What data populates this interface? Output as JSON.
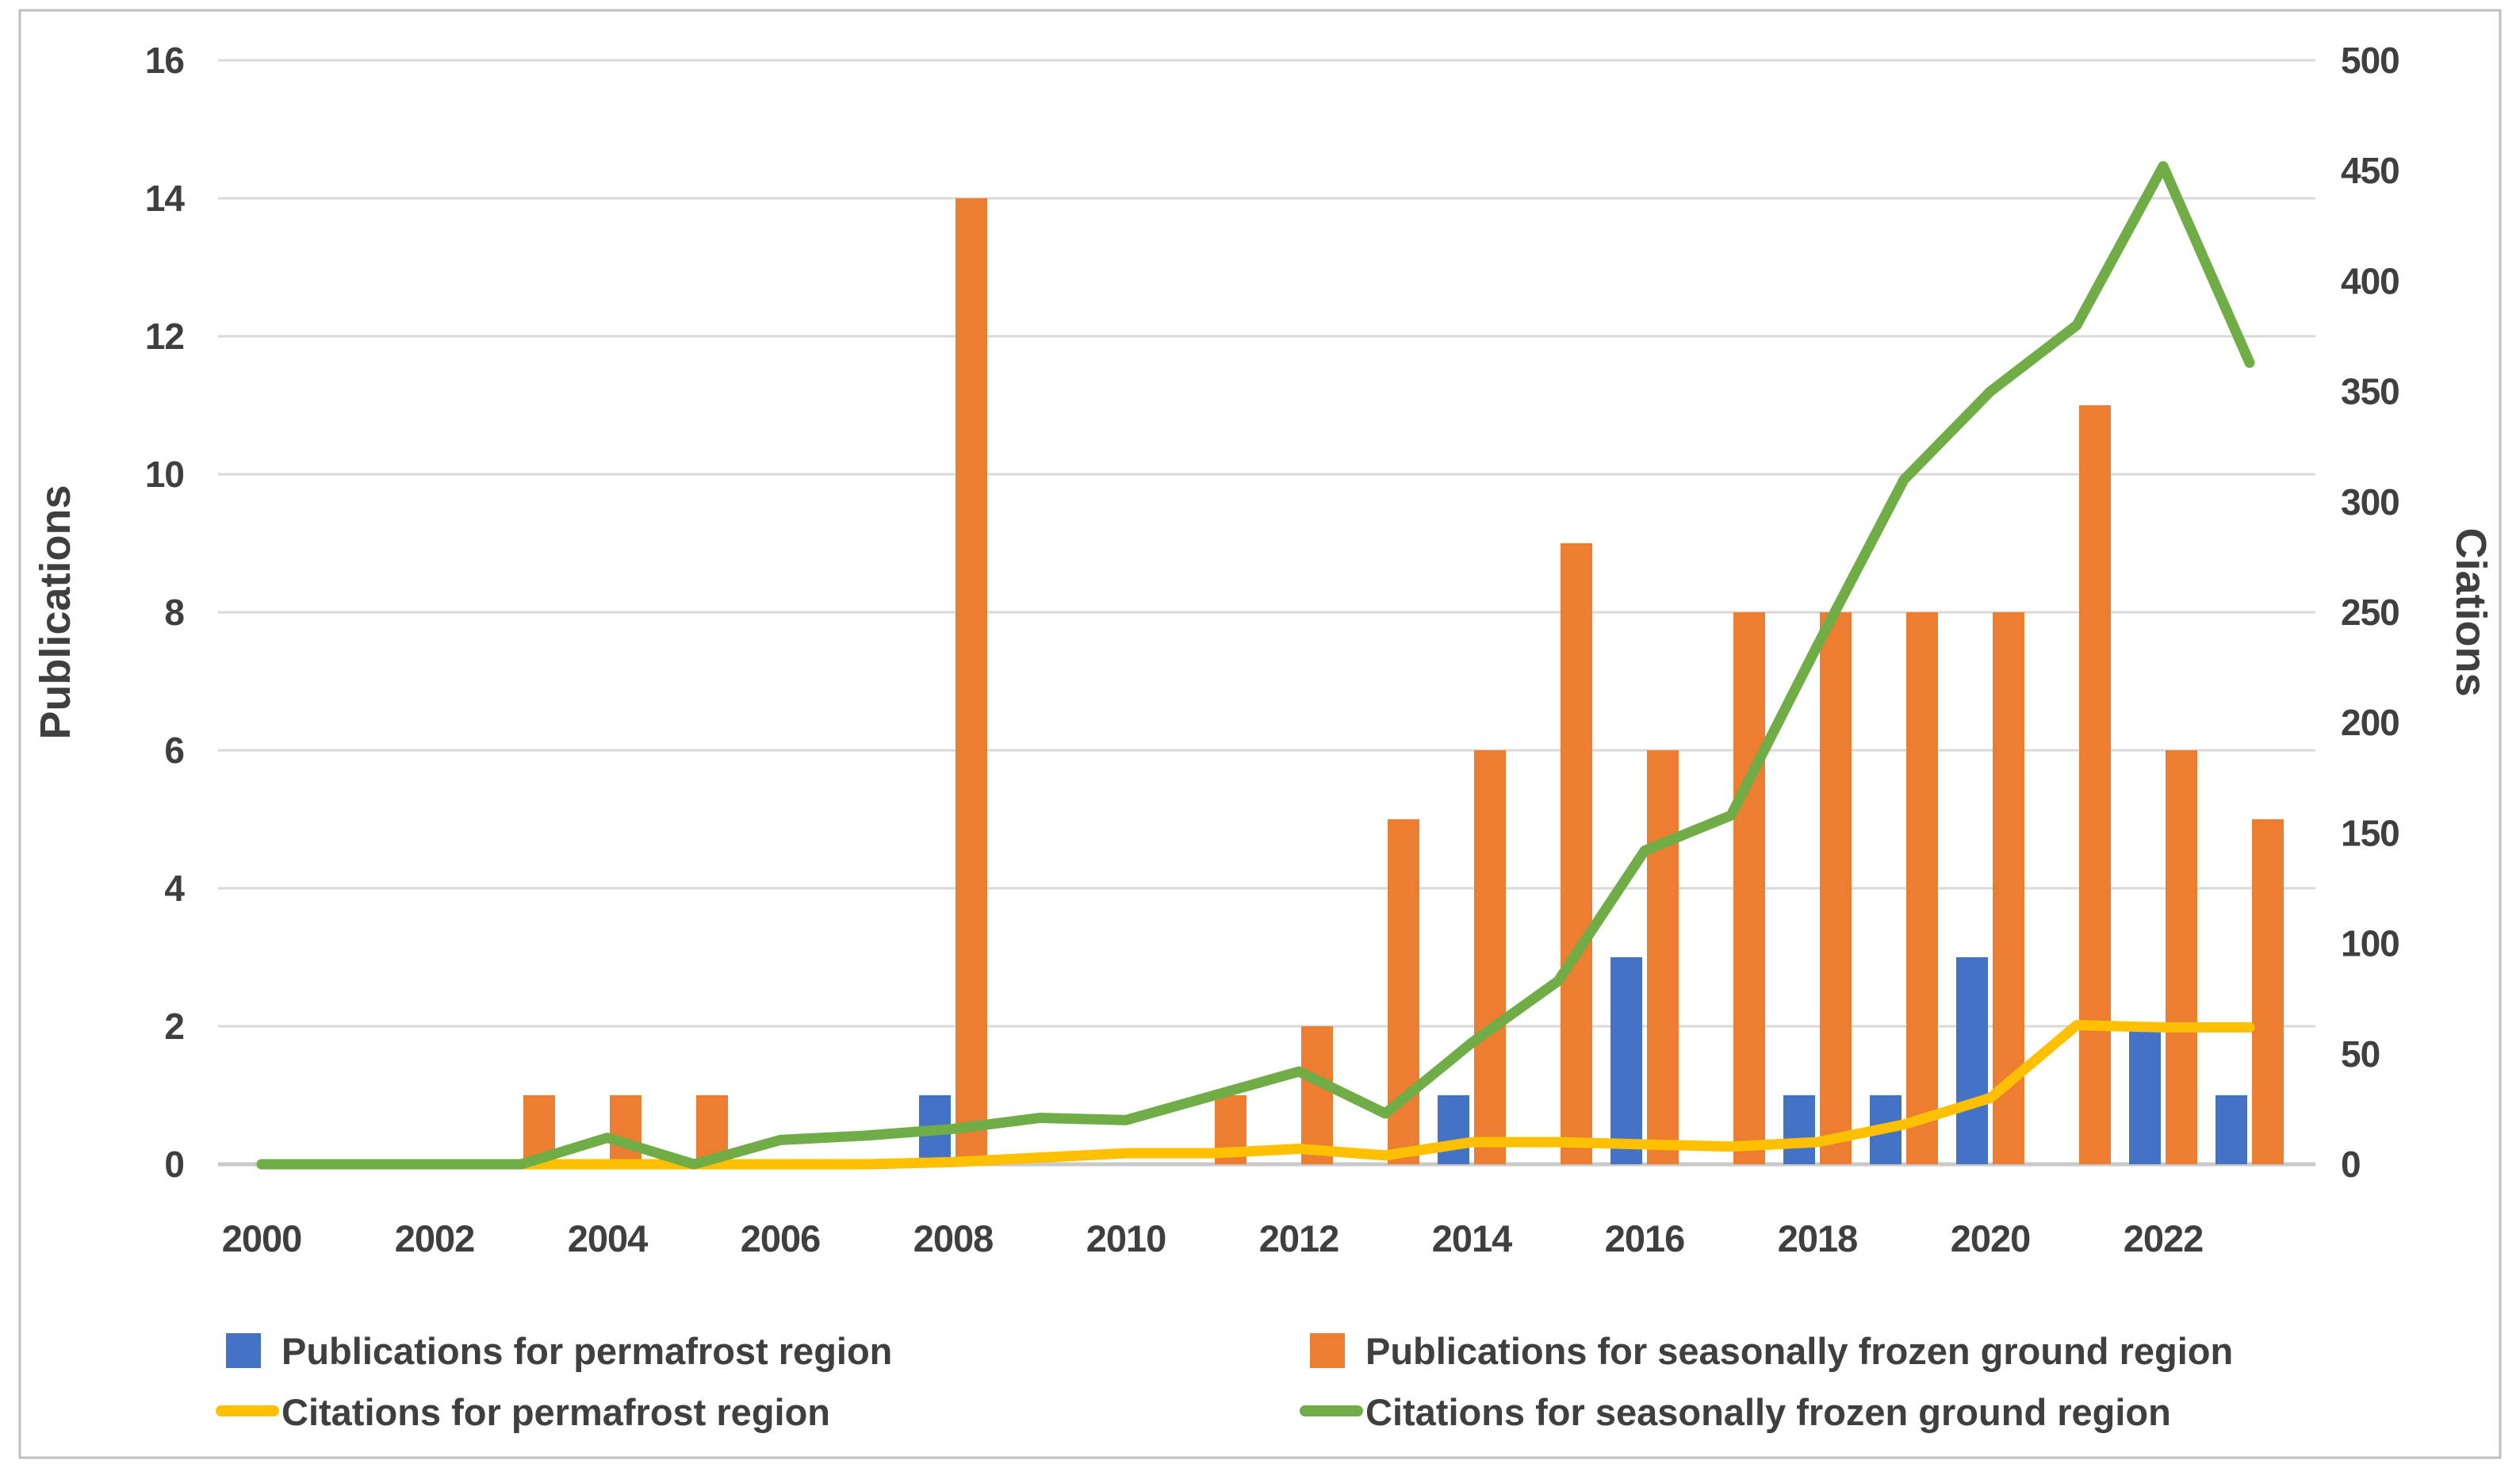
{
  "chart_data": {
    "type": "combo-bar-line",
    "title": "",
    "x": [
      2000,
      2001,
      2002,
      2003,
      2004,
      2005,
      2006,
      2007,
      2008,
      2009,
      2010,
      2011,
      2012,
      2013,
      2014,
      2015,
      2016,
      2017,
      2018,
      2019,
      2020,
      2021,
      2022,
      2023
    ],
    "series": [
      {
        "name": "Publications for permafrost region",
        "type": "bar",
        "axis": "left",
        "color": "#4472C4",
        "values": [
          0,
          0,
          0,
          0,
          0,
          0,
          0,
          0,
          1,
          0,
          0,
          0,
          0,
          0,
          1,
          0,
          3,
          0,
          1,
          1,
          3,
          0,
          2,
          1
        ]
      },
      {
        "name": "Publications for seasonally frozen ground region",
        "type": "bar",
        "axis": "left",
        "color": "#ED7D31",
        "values": [
          0,
          0,
          0,
          1,
          1,
          1,
          0,
          0,
          14,
          0,
          0,
          1,
          2,
          5,
          6,
          9,
          6,
          8,
          8,
          8,
          8,
          11,
          6,
          5
        ]
      },
      {
        "name": "Citations for permafrost region",
        "type": "line",
        "axis": "right",
        "color": "#FFC000",
        "values": [
          0,
          0,
          0,
          0,
          0,
          0,
          0,
          0,
          1,
          3,
          5,
          5,
          7,
          4,
          10,
          10,
          9,
          8,
          10,
          18,
          30,
          63,
          62,
          62
        ]
      },
      {
        "name": "Citations for seasonally frozen ground region",
        "type": "line",
        "axis": "right",
        "color": "#70AD47",
        "values": [
          0,
          0,
          0,
          0,
          12,
          0,
          11,
          13,
          16,
          21,
          20,
          31,
          42,
          23,
          55,
          83,
          142,
          158,
          235,
          310,
          350,
          380,
          452,
          363
        ]
      }
    ],
    "left_axis": {
      "label": "Publications",
      "min": 0,
      "max": 16,
      "ticks": [
        0,
        2,
        4,
        6,
        8,
        10,
        12,
        14,
        16
      ]
    },
    "right_axis": {
      "label": "Ciations",
      "min": 0,
      "max": 500,
      "ticks": [
        0,
        50,
        100,
        150,
        200,
        250,
        300,
        350,
        400,
        450,
        500
      ]
    },
    "x_axis": {
      "tick_labels": [
        "2000",
        "2002",
        "2004",
        "2006",
        "2008",
        "2010",
        "2012",
        "2014",
        "2016",
        "2018",
        "2020",
        "2022"
      ]
    },
    "layout": {
      "grid": "horizontal",
      "legend_position": "bottom",
      "gridline_color": "#D9D9D9",
      "axisline_color": "#C9C9C9",
      "frame_color": "#BFBFBF",
      "background": "#FFFFFF"
    }
  }
}
